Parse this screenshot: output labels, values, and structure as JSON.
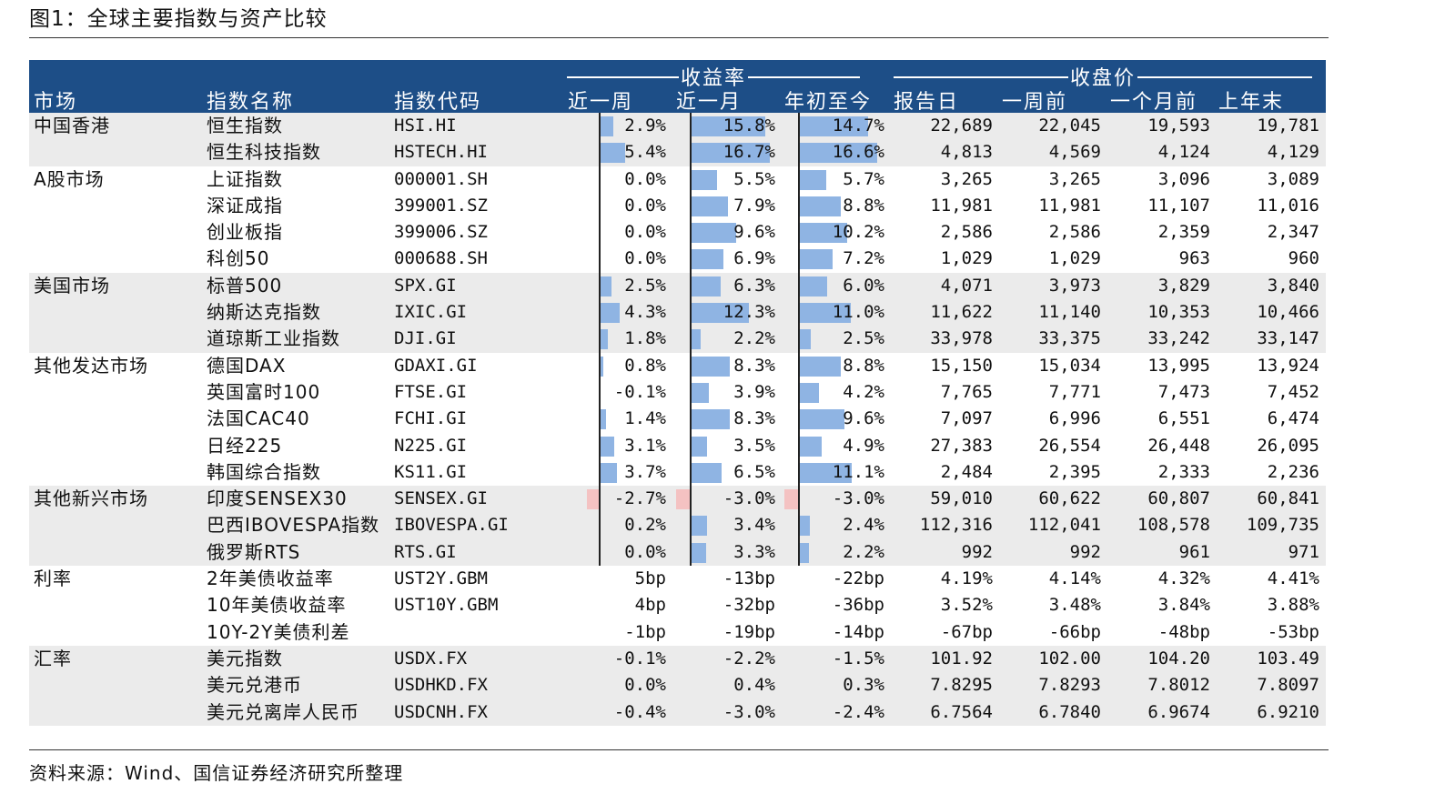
{
  "title": "图1：全球主要指数与资产比较",
  "source": "资料来源：Wind、国信证券经济研究所整理",
  "colors": {
    "header_bg": "#1d4e87",
    "shade": "#ebebeb",
    "bar_pos": "#8fb4e3",
    "bar_neg": "#f4c2c2"
  },
  "header": {
    "market": "市场",
    "index_name": "指数名称",
    "index_code": "指数代码",
    "group_return": "收益率",
    "group_close": "收盘价",
    "col_1w": "近一周",
    "col_1m": "近一月",
    "col_ytd": "年初至今",
    "col_report": "报告日",
    "col_wk_before": "一周前",
    "col_month_before": "一个月前",
    "col_last_year_end": "上年末"
  },
  "rows": [
    {
      "market": "中国香港",
      "name": "恒生指数",
      "code": "HSI.HI",
      "r1w": "2.9%",
      "r1m": "15.8%",
      "rytd": "14.7%",
      "v1w": 2.9,
      "v1m": 15.8,
      "vytd": 14.7,
      "p0": "22,689",
      "p1": "22,045",
      "p2": "19,593",
      "p3": "19,781"
    },
    {
      "market": "",
      "name": "恒生科技指数",
      "code": "HSTECH.HI",
      "r1w": "5.4%",
      "r1m": "16.7%",
      "rytd": "16.6%",
      "v1w": 5.4,
      "v1m": 16.7,
      "vytd": 16.6,
      "p0": "4,813",
      "p1": "4,569",
      "p2": "4,124",
      "p3": "4,129"
    },
    {
      "market": "A股市场",
      "name": "上证指数",
      "code": "000001.SH",
      "r1w": "0.0%",
      "r1m": "5.5%",
      "rytd": "5.7%",
      "v1w": 0.0,
      "v1m": 5.5,
      "vytd": 5.7,
      "p0": "3,265",
      "p1": "3,265",
      "p2": "3,096",
      "p3": "3,089"
    },
    {
      "market": "",
      "name": "深证成指",
      "code": "399001.SZ",
      "r1w": "0.0%",
      "r1m": "7.9%",
      "rytd": "8.8%",
      "v1w": 0.0,
      "v1m": 7.9,
      "vytd": 8.8,
      "p0": "11,981",
      "p1": "11,981",
      "p2": "11,107",
      "p3": "11,016"
    },
    {
      "market": "",
      "name": "创业板指",
      "code": "399006.SZ",
      "r1w": "0.0%",
      "r1m": "9.6%",
      "rytd": "10.2%",
      "v1w": 0.0,
      "v1m": 9.6,
      "vytd": 10.2,
      "p0": "2,586",
      "p1": "2,586",
      "p2": "2,359",
      "p3": "2,347"
    },
    {
      "market": "",
      "name": "科创50",
      "code": "000688.SH",
      "r1w": "0.0%",
      "r1m": "6.9%",
      "rytd": "7.2%",
      "v1w": 0.0,
      "v1m": 6.9,
      "vytd": 7.2,
      "p0": "1,029",
      "p1": "1,029",
      "p2": "963",
      "p3": "960"
    },
    {
      "market": "美国市场",
      "name": "标普500",
      "code": "SPX.GI",
      "r1w": "2.5%",
      "r1m": "6.3%",
      "rytd": "6.0%",
      "v1w": 2.5,
      "v1m": 6.3,
      "vytd": 6.0,
      "p0": "4,071",
      "p1": "3,973",
      "p2": "3,829",
      "p3": "3,840"
    },
    {
      "market": "",
      "name": "纳斯达克指数",
      "code": "IXIC.GI",
      "r1w": "4.3%",
      "r1m": "12.3%",
      "rytd": "11.0%",
      "v1w": 4.3,
      "v1m": 12.3,
      "vytd": 11.0,
      "p0": "11,622",
      "p1": "11,140",
      "p2": "10,353",
      "p3": "10,466"
    },
    {
      "market": "",
      "name": "道琼斯工业指数",
      "code": "DJI.GI",
      "r1w": "1.8%",
      "r1m": "2.2%",
      "rytd": "2.5%",
      "v1w": 1.8,
      "v1m": 2.2,
      "vytd": 2.5,
      "p0": "33,978",
      "p1": "33,375",
      "p2": "33,242",
      "p3": "33,147"
    },
    {
      "market": "其他发达市场",
      "name": "德国DAX",
      "code": "GDAXI.GI",
      "r1w": "0.8%",
      "r1m": "8.3%",
      "rytd": "8.8%",
      "v1w": 0.8,
      "v1m": 8.3,
      "vytd": 8.8,
      "p0": "15,150",
      "p1": "15,034",
      "p2": "13,995",
      "p3": "13,924"
    },
    {
      "market": "",
      "name": "英国富时100",
      "code": "FTSE.GI",
      "r1w": "-0.1%",
      "r1m": "3.9%",
      "rytd": "4.2%",
      "v1w": -0.1,
      "v1m": 3.9,
      "vytd": 4.2,
      "p0": "7,765",
      "p1": "7,771",
      "p2": "7,473",
      "p3": "7,452"
    },
    {
      "market": "",
      "name": "法国CAC40",
      "code": "FCHI.GI",
      "r1w": "1.4%",
      "r1m": "8.3%",
      "rytd": "9.6%",
      "v1w": 1.4,
      "v1m": 8.3,
      "vytd": 9.6,
      "p0": "7,097",
      "p1": "6,996",
      "p2": "6,551",
      "p3": "6,474"
    },
    {
      "market": "",
      "name": "日经225",
      "code": "N225.GI",
      "r1w": "3.1%",
      "r1m": "3.5%",
      "rytd": "4.9%",
      "v1w": 3.1,
      "v1m": 3.5,
      "vytd": 4.9,
      "p0": "27,383",
      "p1": "26,554",
      "p2": "26,448",
      "p3": "26,095"
    },
    {
      "market": "",
      "name": "韩国综合指数",
      "code": "KS11.GI",
      "r1w": "3.7%",
      "r1m": "6.5%",
      "rytd": "11.1%",
      "v1w": 3.7,
      "v1m": 6.5,
      "vytd": 11.1,
      "p0": "2,484",
      "p1": "2,395",
      "p2": "2,333",
      "p3": "2,236"
    },
    {
      "market": "其他新兴市场",
      "name": "印度SENSEX30",
      "code": "SENSEX.GI",
      "r1w": "-2.7%",
      "r1m": "-3.0%",
      "rytd": "-3.0%",
      "v1w": -2.7,
      "v1m": -3.0,
      "vytd": -3.0,
      "p0": "59,010",
      "p1": "60,622",
      "p2": "60,807",
      "p3": "60,841"
    },
    {
      "market": "",
      "name": "巴西IBOVESPA指数",
      "code": "IBOVESPA.GI",
      "r1w": "0.2%",
      "r1m": "3.4%",
      "rytd": "2.4%",
      "v1w": 0.2,
      "v1m": 3.4,
      "vytd": 2.4,
      "p0": "112,316",
      "p1": "112,041",
      "p2": "108,578",
      "p3": "109,735"
    },
    {
      "market": "",
      "name": "俄罗斯RTS",
      "code": "RTS.GI",
      "r1w": "0.0%",
      "r1m": "3.3%",
      "rytd": "2.2%",
      "v1w": 0.0,
      "v1m": 3.3,
      "vytd": 2.2,
      "p0": "992",
      "p1": "992",
      "p2": "961",
      "p3": "971"
    },
    {
      "market": "利率",
      "name": "2年美债收益率",
      "code": "UST2Y.GBM",
      "r1w": "5bp",
      "r1m": "-13bp",
      "rytd": "-22bp",
      "p0": "4.19%",
      "p1": "4.14%",
      "p2": "4.32%",
      "p3": "4.41%"
    },
    {
      "market": "",
      "name": "10年美债收益率",
      "code": "UST10Y.GBM",
      "r1w": "4bp",
      "r1m": "-32bp",
      "rytd": "-36bp",
      "p0": "3.52%",
      "p1": "3.48%",
      "p2": "3.84%",
      "p3": "3.88%"
    },
    {
      "market": "",
      "name": "10Y-2Y美债利差",
      "code": "",
      "r1w": "-1bp",
      "r1m": "-19bp",
      "rytd": "-14bp",
      "p0": "-67bp",
      "p1": "-66bp",
      "p2": "-48bp",
      "p3": "-53bp"
    },
    {
      "market": "汇率",
      "name": "美元指数",
      "code": "USDX.FX",
      "r1w": "-0.1%",
      "r1m": "-2.2%",
      "rytd": "-1.5%",
      "p0": "101.92",
      "p1": "102.00",
      "p2": "104.20",
      "p3": "103.49"
    },
    {
      "market": "",
      "name": "美元兑港币",
      "code": "USDHKD.FX",
      "r1w": "0.0%",
      "r1m": "0.4%",
      "rytd": "0.3%",
      "p0": "7.8295",
      "p1": "7.8293",
      "p2": "7.8012",
      "p3": "7.8097"
    },
    {
      "market": "",
      "name": "美元兑离岸人民币",
      "code": "USDCNH.FX",
      "r1w": "-0.4%",
      "r1m": "-3.0%",
      "rytd": "-2.4%",
      "p0": "6.7564",
      "p1": "6.7840",
      "p2": "6.9674",
      "p3": "6.9210"
    }
  ]
}
